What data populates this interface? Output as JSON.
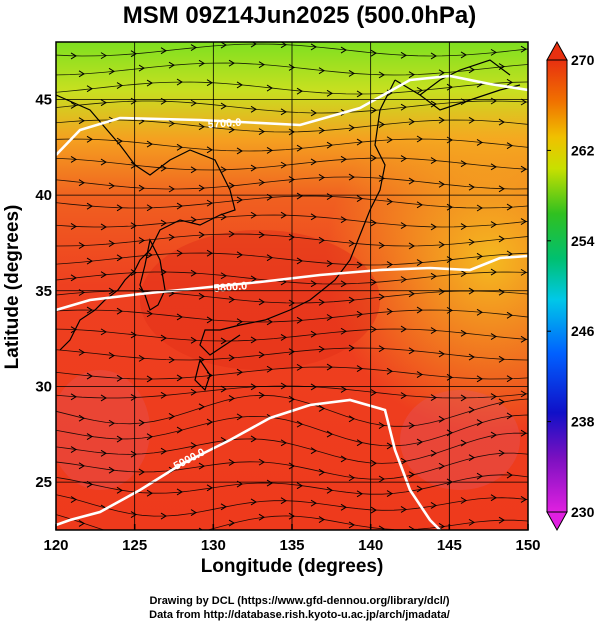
{
  "title": "MSM 09Z14Jun2025 (500.0hPa)",
  "map": {
    "xlabel": "Longitude (degrees)",
    "ylabel": "Latitude  (degrees)",
    "lon_range": [
      120,
      150
    ],
    "lat_range": [
      22.5,
      48
    ],
    "x_ticks": [
      "120",
      "125",
      "130",
      "135",
      "140",
      "145",
      "150"
    ],
    "y_ticks": [
      "25",
      "30",
      "35",
      "40",
      "45"
    ],
    "contours": [
      {
        "label": "5700.0"
      },
      {
        "label": "5800.0"
      },
      {
        "label": "5900.0"
      }
    ]
  },
  "colorbar": {
    "ticks": [
      "270",
      "262",
      "254",
      "246",
      "238",
      "230"
    ]
  },
  "credits": {
    "line1": "Drawing by DCL (https://www.gfd-dennou.org/library/dcl/)",
    "line2": "Data from http://database.rish.kyoto-u.ac.jp/arch/jmadata/"
  }
}
